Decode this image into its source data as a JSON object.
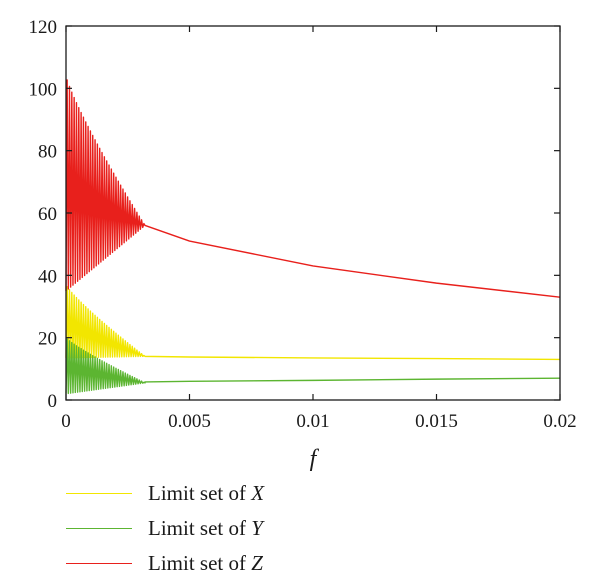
{
  "chart_data": {
    "type": "line",
    "xlabel": "f",
    "ylabel": "",
    "xlim": [
      0,
      0.02
    ],
    "ylim": [
      0,
      120
    ],
    "x_ticks": [
      0,
      0.005,
      0.01,
      0.015,
      0.02
    ],
    "x_tick_labels": [
      "0",
      "0.005",
      "0.01",
      "0.015",
      "0.02"
    ],
    "y_ticks": [
      0,
      20,
      40,
      60,
      80,
      100,
      120
    ],
    "y_tick_labels": [
      "0",
      "20",
      "40",
      "60",
      "80",
      "100",
      "120"
    ],
    "grid": false,
    "legend_position": "bottom",
    "series": [
      {
        "name": "Limit set of X",
        "label_prefix": "Limit set of ",
        "label_var": "X",
        "color": "#f2e600",
        "oscillation": {
          "x_end": 0.0032,
          "low_start": 13.5,
          "low_end": 14,
          "high_start": 37,
          "high_end": 14,
          "cycles": 34
        },
        "values": [
          [
            0.0032,
            14
          ],
          [
            0.005,
            13.8
          ],
          [
            0.01,
            13.5
          ],
          [
            0.015,
            13.3
          ],
          [
            0.02,
            13
          ]
        ]
      },
      {
        "name": "Limit set of Y",
        "label_prefix": "Limit set of ",
        "label_var": "Y",
        "color": "#5cb531",
        "oscillation": {
          "x_end": 0.0032,
          "low_start": 2,
          "low_end": 5.5,
          "high_start": 20,
          "high_end": 5.5,
          "cycles": 34
        },
        "values": [
          [
            0.0032,
            5.8
          ],
          [
            0.005,
            6
          ],
          [
            0.01,
            6.3
          ],
          [
            0.015,
            6.7
          ],
          [
            0.02,
            7
          ]
        ]
      },
      {
        "name": "Limit set of Z",
        "label_prefix": "Limit set of ",
        "label_var": "Z",
        "color": "#e8201c",
        "oscillation": {
          "x_end": 0.0032,
          "low_start": 35,
          "low_end": 56,
          "high_start": 104,
          "high_end": 56,
          "cycles": 34
        },
        "values": [
          [
            0.0032,
            56
          ],
          [
            0.005,
            51
          ],
          [
            0.01,
            43
          ],
          [
            0.015,
            37.5
          ],
          [
            0.02,
            33
          ]
        ]
      }
    ]
  }
}
